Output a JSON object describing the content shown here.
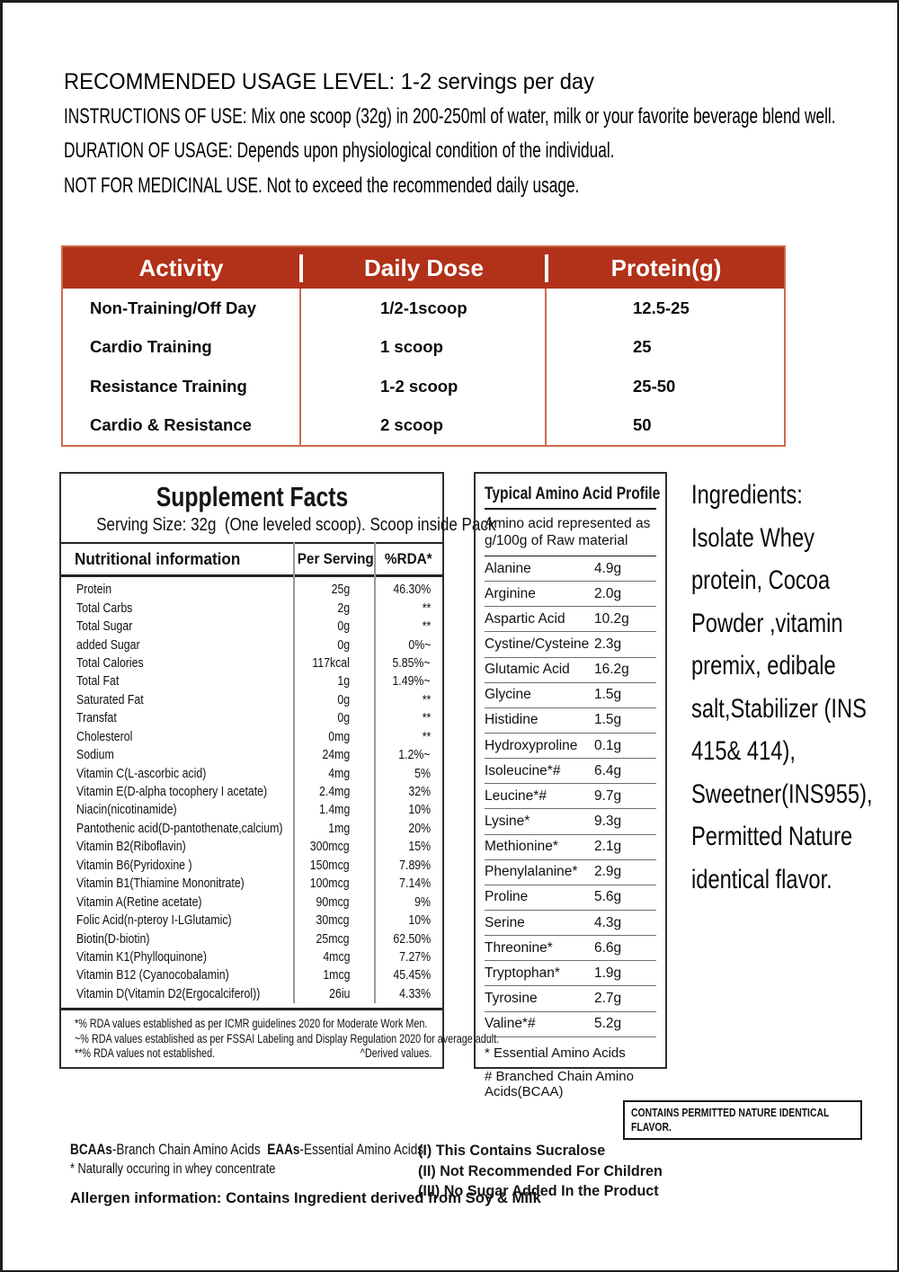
{
  "colors": {
    "frame": "#1d1d1d",
    "table_header_bg": "#b23119",
    "table_border": "#d0694c",
    "panel_border": "#2d2d2d",
    "text": "#111111"
  },
  "usage": {
    "lines": [
      "RECOMMENDED USAGE LEVEL: 1-2 servings per day",
      "INSTRUCTIONS OF USE: Mix one scoop (32g) in 200-250ml of water, milk or your favorite beverage blend well.",
      "DURATION OF USAGE: Depends upon physiological condition of the individual.",
      "NOT FOR MEDICINAL USE. Not to exceed the recommended daily usage."
    ]
  },
  "activity_table": {
    "headers": [
      "Activity",
      "Daily Dose",
      "Protein(g)"
    ],
    "rows": [
      [
        "Non-Training/Off Day",
        "1/2-1scoop",
        "12.5-25"
      ],
      [
        "Cardio Training",
        "1 scoop",
        "25"
      ],
      [
        "Resistance Training",
        "1-2 scoop",
        "25-50"
      ],
      [
        "Cardio & Resistance",
        "2 scoop",
        "50"
      ]
    ]
  },
  "supplement_facts": {
    "title": "Supplement Facts",
    "serving_line": "Serving Size: 32g  (One leveled scoop). Scoop inside Pack",
    "columns": [
      "Nutritional information",
      "Per Serving",
      "%RDA*"
    ],
    "rows": [
      [
        "Protein",
        "25g",
        "46.30%"
      ],
      [
        "Total Carbs",
        "2g",
        "**"
      ],
      [
        "Total Sugar",
        "0g",
        "**"
      ],
      [
        "added Sugar",
        "0g",
        "0%~"
      ],
      [
        "Total Calories",
        "117kcal",
        "5.85%~"
      ],
      [
        "Total Fat",
        "1g",
        "1.49%~"
      ],
      [
        "Saturated Fat",
        "0g",
        "**"
      ],
      [
        "Transfat",
        "0g",
        "**"
      ],
      [
        "Cholesterol",
        "0mg",
        "**"
      ],
      [
        "Sodium",
        "24mg",
        "1.2%~"
      ],
      [
        "Vitamin C(L-ascorbic acid)",
        "4mg",
        "5%"
      ],
      [
        "Vitamin E(D-alpha tocophery I acetate)",
        "2.4mg",
        "32%"
      ],
      [
        "Niacin(nicotinamide)",
        "1.4mg",
        "10%"
      ],
      [
        "Pantothenic acid(D-pantothenate,calcium)",
        "1mg",
        "20%"
      ],
      [
        "Vitamin B2(Riboflavin)",
        "300mcg",
        "15%"
      ],
      [
        "Vitamin B6(Pyridoxine )",
        "150mcg",
        "7.89%"
      ],
      [
        "Vitamin B1(Thiamine Mononitrate)",
        "100mcg",
        "7.14%"
      ],
      [
        "Vitamin A(Retine acetate)",
        "90mcg",
        "9%"
      ],
      [
        "Folic Acid(n-pteroy I-LGlutamic)",
        "30mcg",
        "10%"
      ],
      [
        "Biotin(D-biotin)",
        "25mcg",
        "62.50%"
      ],
      [
        "Vitamin K1(Phylloquinone)",
        "4mcg",
        "7.27%"
      ],
      [
        "Vitamin B12 (Cyanocobalamin)",
        "1mcg",
        "45.45%"
      ],
      [
        "Vitamin D(Vitamin D2(Ergocalciferol))",
        "26iu",
        "4.33%"
      ]
    ],
    "footnotes": [
      "*% RDA values established as per ICMR guidelines 2020 for Moderate Work Men.",
      "~% RDA values established as per FSSAI Labeling and Display Regulation 2020 for average adult.",
      "**% RDA values not established."
    ],
    "derived_note": "^Derived values."
  },
  "amino_profile": {
    "title": "Typical Amino Acid Profile",
    "subtitle": "Amino acid represented as g/100g of Raw material",
    "rows": [
      [
        "Alanine",
        "4.9g"
      ],
      [
        "Arginine",
        "2.0g"
      ],
      [
        "Aspartic Acid",
        "10.2g"
      ],
      [
        "Cystine/Cysteine",
        "2.3g"
      ],
      [
        "Glutamic Acid",
        "16.2g"
      ],
      [
        "Glycine",
        "1.5g"
      ],
      [
        "Histidine",
        "1.5g"
      ],
      [
        "Hydroxyproline",
        "0.1g"
      ],
      [
        "Isoleucine*#",
        "6.4g"
      ],
      [
        "Leucine*#",
        "9.7g"
      ],
      [
        "Lysine*",
        "9.3g"
      ],
      [
        "Methionine*",
        "2.1g"
      ],
      [
        "Phenylalanine*",
        "2.9g"
      ],
      [
        "Proline",
        "5.6g"
      ],
      [
        "Serine",
        "4.3g"
      ],
      [
        "Threonine*",
        "6.6g"
      ],
      [
        "Tryptophan*",
        "1.9g"
      ],
      [
        "Tyrosine",
        "2.7g"
      ],
      [
        "Valine*#",
        "5.2g"
      ]
    ],
    "footnotes": [
      "* Essential Amino Acids",
      "# Branched Chain Amino Acids(BCAA)"
    ]
  },
  "ingredients": {
    "text": "Ingredients: Isolate Whey protein, Cocoa Powder ,vitamin premix, edibale salt,Stabilizer (INS 415& 414), Sweetner(INS955), Permitted Nature identical flavor."
  },
  "flavor_box": {
    "text": "CONTAINS PERMITTED NATURE IDENTICAL FLAVOR."
  },
  "footer": {
    "abbr": {
      "bcaa_label": "BCAAs",
      "bcaa_text": "-Branch Chain Amino Acids  ",
      "eaa_label": "EAAs",
      "eaa_text": "-Essential Amino Acids"
    },
    "natural_note": "* Naturally occuring in whey concentrate",
    "allergen": "Allergen information: Contains Ingredient derived from Soy & Milk",
    "notes": [
      "(I) This Contains Sucralose",
      "(II) Not Recommended For Children",
      "(III) No Sugar Added In the Product"
    ]
  }
}
